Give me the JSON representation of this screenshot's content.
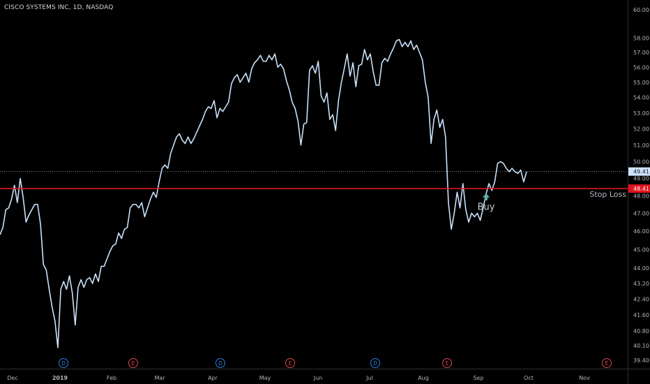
{
  "header": {
    "title": "CISCO SYSTEMS INC, 1D, NASDAQ"
  },
  "colors": {
    "background": "#000000",
    "line": "#c9e2fb",
    "stop_loss": "#e0141e",
    "price_marker_bg": "#cfe4fa",
    "buy_marker": "#5fb3a8",
    "earnings": "#e04848",
    "dividend": "#2f7ee0",
    "axis_text": "#b2b5be"
  },
  "annotations": {
    "stop_loss_label": "Stop Loss",
    "buy_label": "Buy",
    "stop_loss_value": "48.41",
    "current_value": "49.41"
  },
  "events": [
    {
      "type": "dividend",
      "label": "D",
      "month_index": 0
    },
    {
      "type": "earnings",
      "label": "E",
      "month_index": 1
    },
    {
      "type": "dividend",
      "label": "D",
      "month_index": 3
    },
    {
      "type": "earnings",
      "label": "E",
      "month_index": 4
    },
    {
      "type": "dividend",
      "label": "D",
      "month_index": 6
    },
    {
      "type": "earnings",
      "label": "E",
      "month_index": 7
    },
    {
      "type": "earnings",
      "label": "E",
      "month_index": 10
    }
  ],
  "chart_data": {
    "type": "line",
    "title": "CISCO SYSTEMS INC, 1D, NASDAQ",
    "xlabel": "",
    "ylabel": "",
    "x_tick_labels": [
      "Dec",
      "2019",
      "Feb",
      "Mar",
      "Apr",
      "May",
      "Jun",
      "Jul",
      "Aug",
      "Sep",
      "Oct",
      "Nov"
    ],
    "y_tick_labels": [
      "39.40",
      "40.10",
      "40.80",
      "41.60",
      "42.40",
      "43.20",
      "44.00",
      "45.00",
      "46.00",
      "47.00",
      "48.00",
      "49.00",
      "50.00",
      "51.00",
      "52.00",
      "53.00",
      "54.00",
      "55.00",
      "56.00",
      "57.00",
      "58.00",
      "60.00"
    ],
    "y_ticks": [
      39.4,
      40.1,
      40.8,
      41.6,
      42.4,
      43.2,
      44.0,
      45.0,
      46.0,
      47.0,
      48.0,
      49.0,
      50.0,
      51.0,
      52.0,
      53.0,
      54.0,
      55.0,
      56.0,
      57.0,
      58.0,
      60.0
    ],
    "scale": "log",
    "ylim": [
      39.2,
      60.5
    ],
    "horizontal_lines": [
      {
        "label": "Stop Loss",
        "value": 48.41,
        "style": "solid"
      },
      {
        "label": "",
        "value": 49.41,
        "style": "dotted"
      }
    ],
    "buy_marker": {
      "label": "Buy",
      "value": 47.9
    },
    "series": [
      {
        "values": [
          45.8,
          46.2,
          47.2,
          47.3,
          47.8,
          48.6,
          47.6,
          49.0,
          47.9,
          46.5,
          46.9,
          47.2,
          47.5,
          47.5,
          46.4,
          44.2,
          43.9,
          42.9,
          42.0,
          41.3,
          40.0,
          42.9,
          43.3,
          42.9,
          43.6,
          42.7,
          41.1,
          43.0,
          43.4,
          43.0,
          43.4,
          43.5,
          43.2,
          43.7,
          43.3,
          44.1,
          44.1,
          44.5,
          44.9,
          45.2,
          45.3,
          45.9,
          45.6,
          46.1,
          46.2,
          47.3,
          47.5,
          47.5,
          47.3,
          47.6,
          46.8,
          47.3,
          47.8,
          48.2,
          47.9,
          48.8,
          49.6,
          49.8,
          49.6,
          50.5,
          51.0,
          51.5,
          51.7,
          51.3,
          51.1,
          51.5,
          51.1,
          51.4,
          51.8,
          52.2,
          52.6,
          53.1,
          53.4,
          53.3,
          53.8,
          52.7,
          53.3,
          53.1,
          53.4,
          53.7,
          54.9,
          55.3,
          55.5,
          55.0,
          55.3,
          55.6,
          55.0,
          55.9,
          56.3,
          56.5,
          56.8,
          56.4,
          56.4,
          56.8,
          56.5,
          56.9,
          56.0,
          56.2,
          55.9,
          55.1,
          54.5,
          53.7,
          53.3,
          52.5,
          51.0,
          52.3,
          52.4,
          55.8,
          56.1,
          55.6,
          56.4,
          54.1,
          53.7,
          54.3,
          52.6,
          52.9,
          51.9,
          53.8,
          55.0,
          55.9,
          56.9,
          55.4,
          56.3,
          54.7,
          56.1,
          56.2,
          57.2,
          56.5,
          56.9,
          55.7,
          54.8,
          54.8,
          56.3,
          56.6,
          56.4,
          56.9,
          57.3,
          57.8,
          57.9,
          57.4,
          57.7,
          57.4,
          57.8,
          57.2,
          57.5,
          57.0,
          56.5,
          55.0,
          54.0,
          51.1,
          52.6,
          53.2,
          52.1,
          52.6,
          51.5,
          47.6,
          46.1,
          47.0,
          48.2,
          47.3,
          48.7,
          47.2,
          46.5,
          47.0,
          46.8,
          47.0,
          46.6,
          47.3,
          48.1,
          48.7,
          48.3,
          48.8,
          49.9,
          50.0,
          49.9,
          49.6,
          49.4,
          49.6,
          49.4,
          49.3,
          49.5,
          48.8,
          49.4
        ]
      }
    ]
  }
}
